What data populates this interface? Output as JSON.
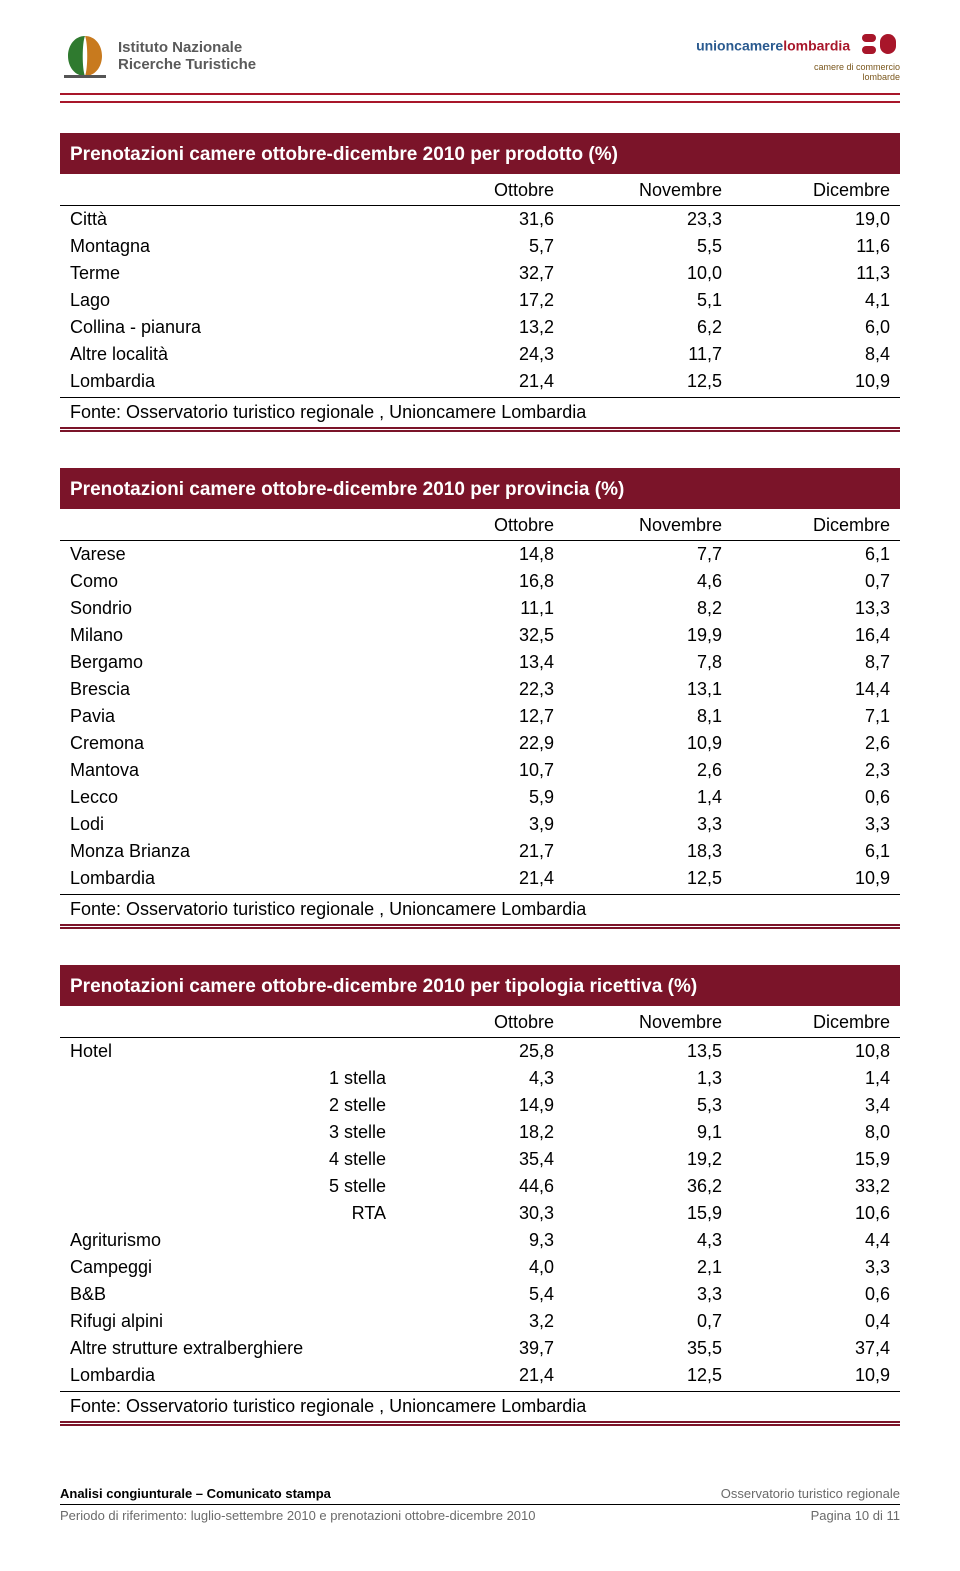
{
  "header": {
    "left_line1": "Istituto Nazionale",
    "left_line2": "Ricerche Turistiche",
    "right_main_a": "unioncamere",
    "right_main_b": "lombardia",
    "right_sub1": "camere di commercio",
    "right_sub2": "lombarde"
  },
  "colors": {
    "title_bg": "#7b1429",
    "title_fg": "#ffffff",
    "rule": "#a8162a",
    "text": "#000000"
  },
  "table1": {
    "title": "Prenotazioni camere ottobre-dicembre 2010 per prodotto (%)",
    "columns": [
      "",
      "Ottobre",
      "Novembre",
      "Dicembre"
    ],
    "rows": [
      [
        "Città",
        "31,6",
        "23,3",
        "19,0"
      ],
      [
        "Montagna",
        "5,7",
        "5,5",
        "11,6"
      ],
      [
        "Terme",
        "32,7",
        "10,0",
        "11,3"
      ],
      [
        "Lago",
        "17,2",
        "5,1",
        "4,1"
      ],
      [
        "Collina - pianura",
        "13,2",
        "6,2",
        "6,0"
      ],
      [
        "Altre località",
        "24,3",
        "11,7",
        "8,4"
      ],
      [
        "Lombardia",
        "21,4",
        "12,5",
        "10,9"
      ]
    ],
    "source": "Fonte: Osservatorio turistico regionale , Unioncamere Lombardia"
  },
  "table2": {
    "title": "Prenotazioni camere ottobre-dicembre 2010 per provincia (%)",
    "columns": [
      "",
      "Ottobre",
      "Novembre",
      "Dicembre"
    ],
    "rows": [
      [
        "Varese",
        "14,8",
        "7,7",
        "6,1"
      ],
      [
        "Como",
        "16,8",
        "4,6",
        "0,7"
      ],
      [
        "Sondrio",
        "11,1",
        "8,2",
        "13,3"
      ],
      [
        "Milano",
        "32,5",
        "19,9",
        "16,4"
      ],
      [
        "Bergamo",
        "13,4",
        "7,8",
        "8,7"
      ],
      [
        "Brescia",
        "22,3",
        "13,1",
        "14,4"
      ],
      [
        "Pavia",
        "12,7",
        "8,1",
        "7,1"
      ],
      [
        "Cremona",
        "22,9",
        "10,9",
        "2,6"
      ],
      [
        "Mantova",
        "10,7",
        "2,6",
        "2,3"
      ],
      [
        "Lecco",
        "5,9",
        "1,4",
        "0,6"
      ],
      [
        "Lodi",
        "3,9",
        "3,3",
        "3,3"
      ],
      [
        "Monza Brianza",
        "21,7",
        "18,3",
        "6,1"
      ],
      [
        "Lombardia",
        "21,4",
        "12,5",
        "10,9"
      ]
    ],
    "source": "Fonte: Osservatorio turistico regionale , Unioncamere Lombardia"
  },
  "table3": {
    "title": "Prenotazioni camere ottobre-dicembre 2010 per tipologia ricettiva (%)",
    "columns": [
      "",
      "",
      "Ottobre",
      "Novembre",
      "Dicembre"
    ],
    "rows": [
      [
        "Hotel",
        "",
        "25,8",
        "13,5",
        "10,8"
      ],
      [
        "",
        "1 stella",
        "4,3",
        "1,3",
        "1,4"
      ],
      [
        "",
        "2 stelle",
        "14,9",
        "5,3",
        "3,4"
      ],
      [
        "",
        "3 stelle",
        "18,2",
        "9,1",
        "8,0"
      ],
      [
        "",
        "4 stelle",
        "35,4",
        "19,2",
        "15,9"
      ],
      [
        "",
        "5 stelle",
        "44,6",
        "36,2",
        "33,2"
      ],
      [
        "",
        "RTA",
        "30,3",
        "15,9",
        "10,6"
      ],
      [
        "Agriturismo",
        "",
        "9,3",
        "4,3",
        "4,4"
      ],
      [
        "Campeggi",
        "",
        "4,0",
        "2,1",
        "3,3"
      ],
      [
        "B&B",
        "",
        "5,4",
        "3,3",
        "0,6"
      ],
      [
        "Rifugi alpini",
        "",
        "3,2",
        "0,7",
        "0,4"
      ],
      [
        "Altre strutture extralberghiere",
        "",
        "39,7",
        "35,5",
        "37,4"
      ],
      [
        "Lombardia",
        "",
        "21,4",
        "12,5",
        "10,9"
      ]
    ],
    "source": "Fonte: Osservatorio turistico regionale , Unioncamere Lombardia"
  },
  "footer": {
    "left_bold": "Analisi congiunturale – Comunicato stampa",
    "right1": "Osservatorio turistico regionale",
    "left2": "Periodo di riferimento: luglio-settembre 2010 e prenotazioni ottobre-dicembre 2010",
    "right2": "Pagina 10 di 11"
  }
}
